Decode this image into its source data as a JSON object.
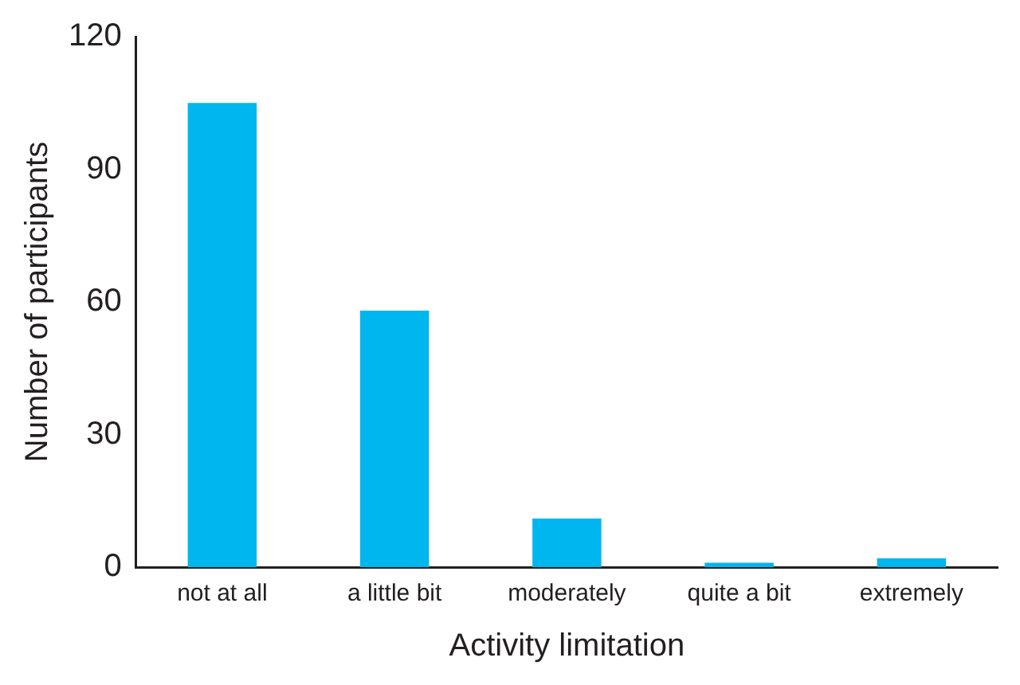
{
  "chart_data": {
    "type": "bar",
    "xlabel": "Activity limitation",
    "ylabel": "Number of participants",
    "categories": [
      "not at all",
      "a little bit",
      "moderately",
      "quite a bit",
      "extremely"
    ],
    "values": [
      105,
      58,
      11,
      1,
      2
    ],
    "color": "#00b6ee",
    "ylim": [
      0,
      120
    ],
    "yticks": [
      0,
      30,
      60,
      90,
      120
    ],
    "grid": false,
    "legend": false
  }
}
